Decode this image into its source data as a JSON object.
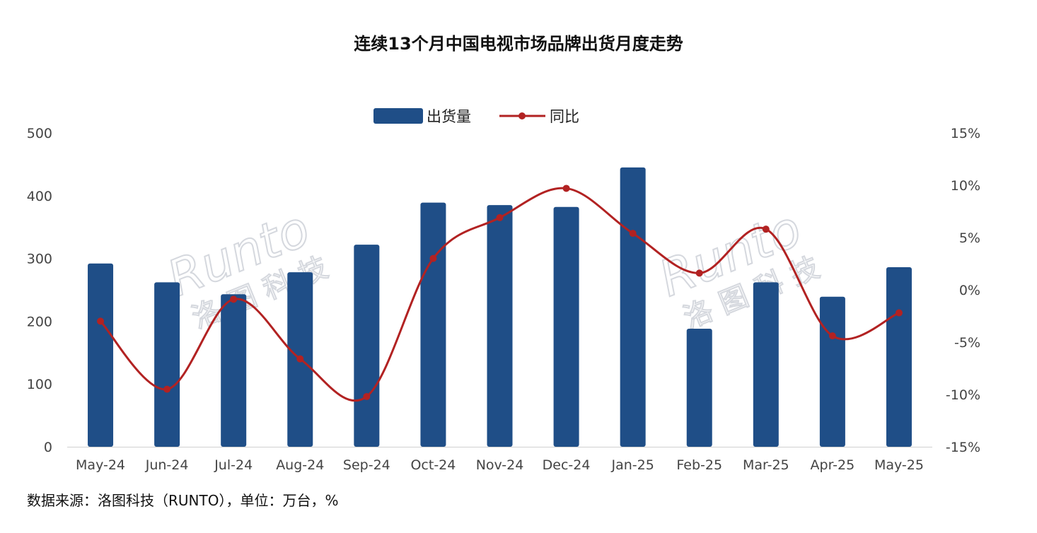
{
  "chart_data": {
    "type": "bar",
    "title": "连续13个月中国电视市场品牌出货月度走势",
    "categories": [
      "May-24",
      "Jun-24",
      "Jul-24",
      "Aug-24",
      "Sep-24",
      "Oct-24",
      "Nov-24",
      "Dec-24",
      "Jan-25",
      "Feb-25",
      "Mar-25",
      "Apr-25",
      "May-25"
    ],
    "series": [
      {
        "name": "出货量",
        "type": "bar",
        "axis": "left",
        "color": "#1f4e87",
        "values": [
          292,
          262,
          243,
          278,
          322,
          389,
          385,
          382,
          445,
          188,
          262,
          239,
          286
        ]
      },
      {
        "name": "同比",
        "type": "line",
        "axis": "right",
        "color": "#b22222",
        "values": [
          -3.0,
          -9.5,
          -0.9,
          -6.6,
          -10.2,
          3.0,
          6.9,
          9.7,
          5.4,
          1.6,
          5.8,
          -4.4,
          -2.2
        ]
      }
    ],
    "left_axis": {
      "ylim": [
        0,
        500
      ],
      "ticks": [
        "0",
        "100",
        "200",
        "300",
        "400",
        "500"
      ]
    },
    "right_axis": {
      "ylim": [
        -15,
        15
      ],
      "ticks": [
        "-15%",
        "-10%",
        "-5%",
        "0%",
        "5%",
        "10%",
        "15%"
      ]
    },
    "legend_position": "top-center",
    "grid": false
  },
  "footer": {
    "source": "数据来源：洛图科技（RUNTO），单位：万台，%"
  },
  "watermark": {
    "brand": "Runto",
    "cn": "洛图科技"
  }
}
